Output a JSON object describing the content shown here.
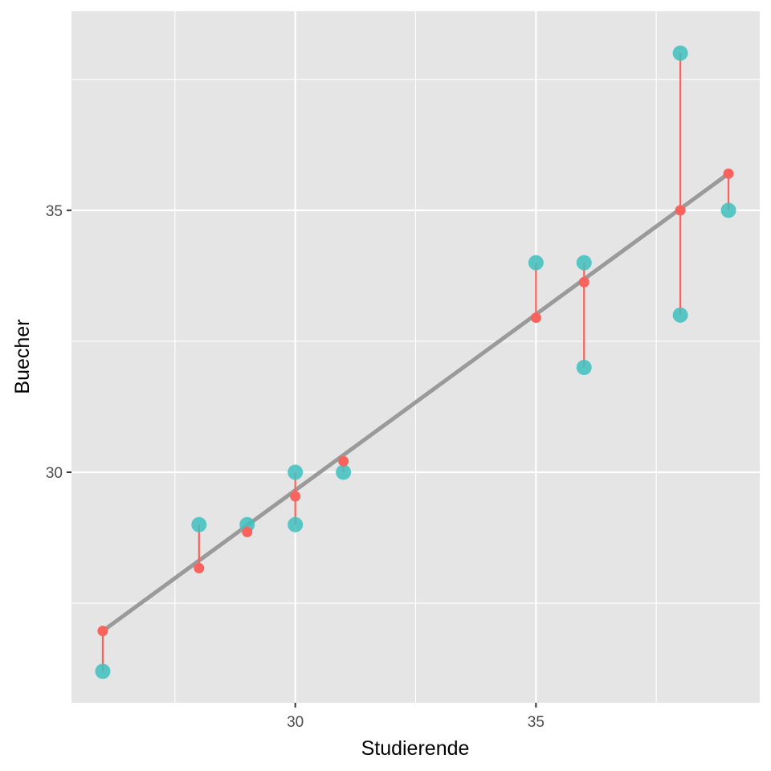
{
  "chart_data": {
    "type": "scatter",
    "title": "",
    "xlabel": "Studierende",
    "ylabel": "Buecher",
    "xlim": [
      25.35,
      39.65
    ],
    "ylim": [
      25.6,
      38.8
    ],
    "x_major_ticks": [
      30,
      35
    ],
    "x_minor_ticks": [
      27.5,
      32.5,
      37.5
    ],
    "y_major_ticks": [
      30,
      35
    ],
    "y_minor_ticks": [
      27.5,
      32.5,
      37.5
    ],
    "grid": true,
    "observed_points": [
      {
        "x": 26,
        "y": 26.2
      },
      {
        "x": 28,
        "y": 29
      },
      {
        "x": 29,
        "y": 29
      },
      {
        "x": 30,
        "y": 30
      },
      {
        "x": 30,
        "y": 29
      },
      {
        "x": 31,
        "y": 30
      },
      {
        "x": 35,
        "y": 34
      },
      {
        "x": 36,
        "y": 34
      },
      {
        "x": 36,
        "y": 32
      },
      {
        "x": 38,
        "y": 38
      },
      {
        "x": 38,
        "y": 33
      },
      {
        "x": 39,
        "y": 35
      }
    ],
    "fitted_points": [
      {
        "x": 26,
        "y": 26.97
      },
      {
        "x": 28,
        "y": 28.17
      },
      {
        "x": 29,
        "y": 28.86
      },
      {
        "x": 30,
        "y": 29.54
      },
      {
        "x": 31,
        "y": 30.21
      },
      {
        "x": 35,
        "y": 32.95
      },
      {
        "x": 36,
        "y": 33.63
      },
      {
        "x": 38,
        "y": 35.0
      },
      {
        "x": 39,
        "y": 35.7
      }
    ],
    "regression_line": {
      "x": [
        26,
        39
      ],
      "y": [
        26.97,
        35.7
      ]
    },
    "colors": {
      "panel": "#e5e5e5",
      "grid": "#ffffff",
      "observed": "#3fbfbf",
      "fitted": "#f8635e",
      "residual": "#f8635e",
      "line": "#9a9a9a"
    }
  }
}
